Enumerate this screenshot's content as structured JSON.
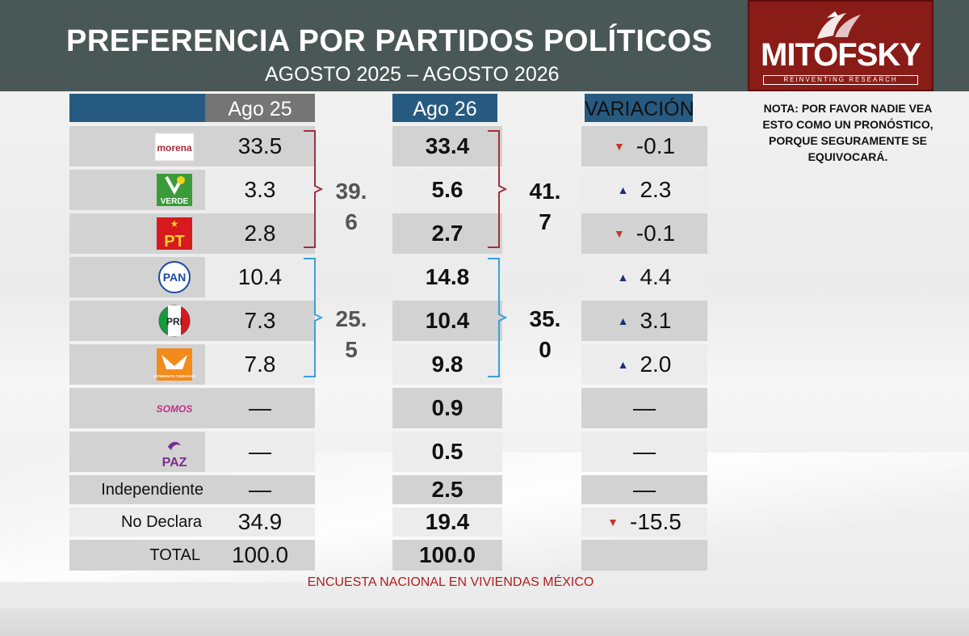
{
  "header": {
    "title": "PREFERENCIA POR PARTIDOS POLÍTICOS",
    "subtitle": "AGOSTO 2025 – AGOSTO 2026",
    "logo_text": "MITOFSKY",
    "logo_tagline": "REINVENTING RESEARCH"
  },
  "note": "NOTA: POR FAVOR NADIE VEA ESTO COMO UN PRONÓSTICO, PORQUE SEGURAMENTE SE EQUIVOCARÁ.",
  "columns": {
    "ago25": "Ago 25",
    "ago26": "Ago 26",
    "variation": "VARIACIÓN"
  },
  "footer": "ENCUESTA NACIONAL EN VIVIENDAS MÉXICO",
  "colors": {
    "header": "#4a5757",
    "logo": "#8a1c18",
    "blue_header": "#275a80",
    "coalition_1": "#a03040",
    "coalition_2": "#3aa0d8",
    "down": "#c0392b",
    "up": "#1a2f78"
  },
  "chart_data": {
    "type": "table",
    "rows": [
      {
        "party": "morena",
        "logo_text": "morena",
        "ago25": "33.5",
        "ago26": "33.4",
        "variation": "-0.1",
        "direction": "down"
      },
      {
        "party": "verde",
        "logo_text": "VERDE",
        "ago25": "3.3",
        "ago26": "5.6",
        "variation": "2.3",
        "direction": "up"
      },
      {
        "party": "pt",
        "logo_text": "PT",
        "ago25": "2.8",
        "ago26": "2.7",
        "variation": "-0.1",
        "direction": "down"
      },
      {
        "party": "pan",
        "logo_text": "PAN",
        "ago25": "10.4",
        "ago26": "14.8",
        "variation": "4.4",
        "direction": "up"
      },
      {
        "party": "pri",
        "logo_text": "PRI",
        "ago25": "7.3",
        "ago26": "10.4",
        "variation": "3.1",
        "direction": "up"
      },
      {
        "party": "mc",
        "logo_text": "MOVIMIENTO CIUDADANO",
        "ago25": "7.8",
        "ago26": "9.8",
        "variation": "2.0",
        "direction": "up"
      },
      {
        "party": "somos",
        "logo_text": "SOMOS",
        "ago25": "—",
        "ago26": "0.9",
        "variation": "—",
        "direction": "none"
      },
      {
        "party": "paz",
        "logo_text": "PAZ",
        "ago25": "—",
        "ago26": "0.5",
        "variation": "—",
        "direction": "none"
      },
      {
        "label": "Independiente",
        "ago25": "—",
        "ago26": "2.5",
        "variation": "—",
        "direction": "none"
      },
      {
        "label": "No Declara",
        "ago25": "34.9",
        "ago26": "19.4",
        "variation": "-15.5",
        "direction": "down"
      },
      {
        "label": "TOTAL",
        "ago25": "100.0",
        "ago26": "100.0",
        "variation": "",
        "direction": "none"
      }
    ],
    "groups": [
      {
        "rows": [
          0,
          1,
          2
        ],
        "ago25_total_line1": "39.",
        "ago25_total_line2": "6",
        "ago26_total_line1": "41.",
        "ago26_total_line2": "7"
      },
      {
        "rows": [
          3,
          4,
          5
        ],
        "ago25_total_line1": "25.",
        "ago25_total_line2": "5",
        "ago26_total_line1": "35.",
        "ago26_total_line2": "0"
      }
    ]
  }
}
